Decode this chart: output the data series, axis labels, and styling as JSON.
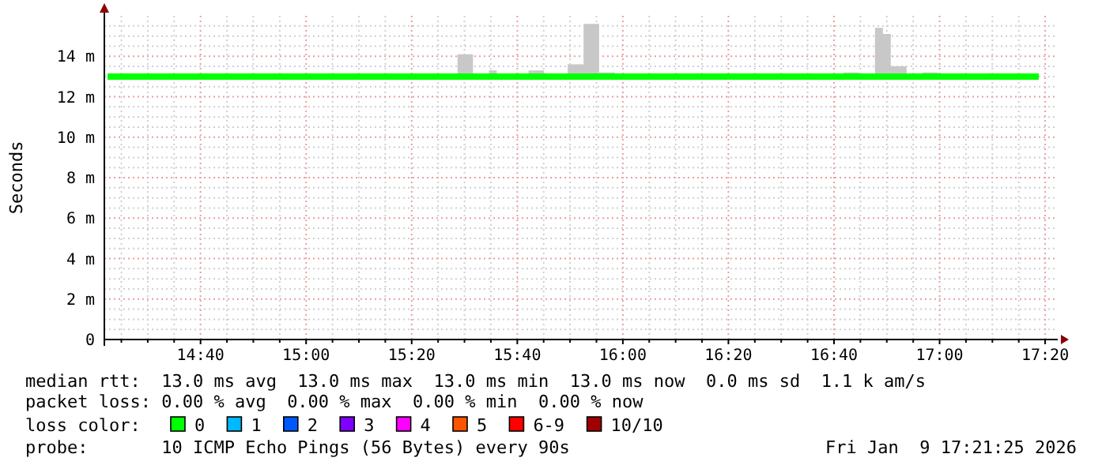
{
  "chart_data": {
    "type": "step",
    "ylabel": "Seconds",
    "x": [
      14.373,
      15.478,
      15.527,
      15.577,
      15.602,
      15.702,
      15.751,
      15.826,
      15.876,
      15.925,
      15.975,
      16.696,
      16.746,
      16.796,
      16.821,
      16.846,
      16.896,
      16.945,
      16.995,
      17.313
    ],
    "series": [
      {
        "name": "0",
        "color": "#00ff00",
        "values": [
          13,
          13,
          13,
          13,
          13,
          13,
          13,
          13,
          13,
          13,
          13,
          13,
          13,
          13,
          13,
          13,
          13,
          13,
          13,
          13
        ],
        "lower": [
          13,
          13,
          13,
          13,
          13,
          13,
          13,
          13,
          13,
          13,
          13,
          13,
          13,
          13,
          13,
          13,
          13,
          13,
          13,
          13
        ],
        "upper": [
          13,
          14.1,
          13,
          13.3,
          13,
          13.3,
          13,
          13.6,
          15.6,
          13.2,
          13,
          13.2,
          13,
          15.4,
          15.1,
          13.5,
          13,
          13.2,
          13,
          13
        ]
      },
      {
        "name": "1",
        "color": "#00b8ff",
        "values": [
          null,
          null,
          null,
          null,
          null,
          null,
          null,
          null,
          null,
          null,
          null,
          null,
          null,
          null,
          null,
          null,
          null,
          null,
          null,
          null
        ]
      },
      {
        "name": "2",
        "color": "#0059ff",
        "values": [
          null,
          null,
          null,
          null,
          null,
          null,
          null,
          null,
          null,
          null,
          null,
          null,
          null,
          null,
          null,
          null,
          null,
          null,
          null,
          null
        ]
      },
      {
        "name": "3",
        "color": "#7e00ff",
        "values": [
          null,
          null,
          null,
          null,
          null,
          null,
          null,
          null,
          null,
          null,
          null,
          null,
          null,
          null,
          null,
          null,
          null,
          null,
          null,
          null
        ]
      },
      {
        "name": "4",
        "color": "#ff00ff",
        "values": [
          null,
          null,
          null,
          null,
          null,
          null,
          null,
          null,
          null,
          null,
          null,
          null,
          null,
          null,
          null,
          null,
          null,
          null,
          null,
          null
        ]
      },
      {
        "name": "5",
        "color": "#ff5500",
        "values": [
          null,
          null,
          null,
          null,
          null,
          null,
          null,
          null,
          null,
          null,
          null,
          null,
          null,
          null,
          null,
          null,
          null,
          null,
          null,
          null
        ]
      },
      {
        "name": "6-9",
        "color": "#ff0000",
        "values": [
          null,
          null,
          null,
          null,
          null,
          null,
          null,
          null,
          null,
          null,
          null,
          null,
          null,
          null,
          null,
          null,
          null,
          null,
          null,
          null
        ]
      },
      {
        "name": "10/10",
        "color": "#a10000",
        "values": [
          null,
          null,
          null,
          null,
          null,
          null,
          null,
          null,
          null,
          null,
          null,
          null,
          null,
          null,
          null,
          null,
          null,
          null,
          null,
          null
        ]
      }
    ],
    "legend": "bottom",
    "legend_title": "loss color:",
    "xlim": [
      14.363,
      17.373
    ],
    "ylim": [
      0,
      16
    ],
    "xticks": [
      {
        "value": 14.4167,
        "label": null
      },
      {
        "value": 14.5,
        "label": null
      },
      {
        "value": 14.5833,
        "label": null
      },
      {
        "value": 14.6667,
        "label": "14:40"
      },
      {
        "value": 14.75,
        "label": null
      },
      {
        "value": 14.8333,
        "label": null
      },
      {
        "value": 14.9167,
        "label": null
      },
      {
        "value": 15,
        "label": "15:00"
      },
      {
        "value": 15.0833,
        "label": null
      },
      {
        "value": 15.1667,
        "label": null
      },
      {
        "value": 15.25,
        "label": null
      },
      {
        "value": 15.3333,
        "label": "15:20"
      },
      {
        "value": 15.4167,
        "label": null
      },
      {
        "value": 15.5,
        "label": null
      },
      {
        "value": 15.5833,
        "label": null
      },
      {
        "value": 15.6667,
        "label": "15:40"
      },
      {
        "value": 15.75,
        "label": null
      },
      {
        "value": 15.8333,
        "label": null
      },
      {
        "value": 15.9167,
        "label": null
      },
      {
        "value": 16,
        "label": "16:00"
      },
      {
        "value": 16.0833,
        "label": null
      },
      {
        "value": 16.1667,
        "label": null
      },
      {
        "value": 16.25,
        "label": null
      },
      {
        "value": 16.3333,
        "label": "16:20"
      },
      {
        "value": 16.4167,
        "label": null
      },
      {
        "value": 16.5,
        "label": null
      },
      {
        "value": 16.5833,
        "label": null
      },
      {
        "value": 16.6667,
        "label": "16:40"
      },
      {
        "value": 16.75,
        "label": null
      },
      {
        "value": 16.8333,
        "label": null
      },
      {
        "value": 16.9167,
        "label": null
      },
      {
        "value": 17,
        "label": "17:00"
      },
      {
        "value": 17.0833,
        "label": null
      },
      {
        "value": 17.1667,
        "label": null
      },
      {
        "value": 17.25,
        "label": null
      },
      {
        "value": 17.3333,
        "label": "17:20"
      }
    ],
    "yticks": [
      0,
      {
        "value": 0.5,
        "label": null
      },
      {
        "value": 1,
        "label": null
      },
      {
        "value": 1.5,
        "label": null
      },
      {
        "value": 2,
        "label": "2 m"
      },
      {
        "value": 2.5,
        "label": null
      },
      {
        "value": 3,
        "label": null
      },
      {
        "value": 3.5,
        "label": null
      },
      {
        "value": 4,
        "label": "4 m"
      },
      {
        "value": 4.5,
        "label": null
      },
      {
        "value": 5,
        "label": null
      },
      {
        "value": 5.5,
        "label": null
      },
      {
        "value": 6,
        "label": "6 m"
      },
      {
        "value": 6.5,
        "label": null
      },
      {
        "value": 7,
        "label": null
      },
      {
        "value": 7.5,
        "label": null
      },
      {
        "value": 8,
        "label": "8 m"
      },
      {
        "value": 8.5,
        "label": null
      },
      {
        "value": 9,
        "label": null
      },
      {
        "value": 9.5,
        "label": null
      },
      {
        "value": 10,
        "label": "10 m"
      },
      {
        "value": 10.5,
        "label": null
      },
      {
        "value": 11,
        "label": null
      },
      {
        "value": 11.5,
        "label": null
      },
      {
        "value": 12,
        "label": "12 m"
      },
      {
        "value": 12.5,
        "label": null
      },
      {
        "value": 13,
        "label": null
      },
      {
        "value": 13.5,
        "label": null
      },
      {
        "value": 14,
        "label": "14 m"
      },
      {
        "value": 14.5,
        "label": null
      },
      {
        "value": 15,
        "label": null
      },
      {
        "value": 15.5,
        "label": null
      }
    ],
    "grid": true,
    "annotations": [
      "median rtt:  13.0 ms avg  13.0 ms max  13.0 ms min  13.0 ms now  0.0 ms sd  1.1 k am/s",
      "packet loss: 0.00 % avg  0.00 % max  0.00 % min  0.00 % now",
      "probe:       10 ICMP Echo Pings (56 Bytes) every 90s",
      "Fri Jan  9 17:21:25 2026"
    ]
  }
}
